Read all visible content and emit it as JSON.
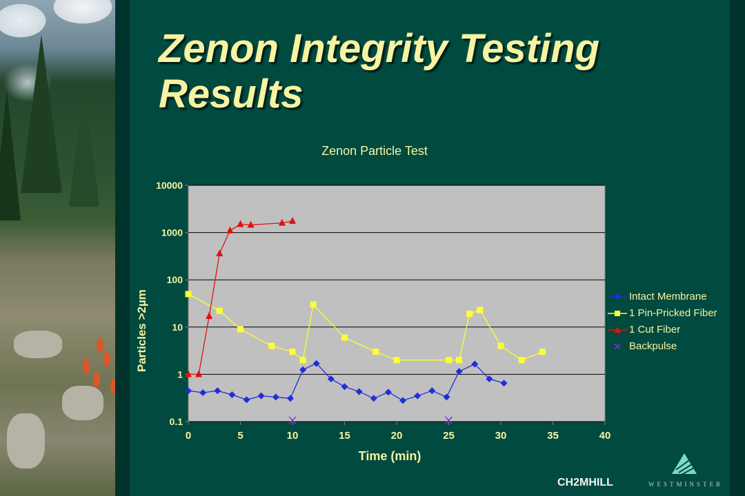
{
  "slide": {
    "title_line1": "Zenon Integrity Testing",
    "title_line2": "Results"
  },
  "logos": {
    "company": "CH2MHILL",
    "partner": "WESTMINSTER"
  },
  "colors": {
    "background": "#004a3f",
    "title_text": "#f7f3a2",
    "plot_bg": "#c0c0c0",
    "intact": "#1f2fd6",
    "pin_pricked": "#ffff33",
    "cut_fiber": "#e01010",
    "backpulse": "#8a2be2"
  },
  "chart_data": {
    "type": "scatter",
    "title": "Zenon Particle Test",
    "xlabel": "Time (min)",
    "ylabel": "Particles >2µm",
    "xlim": [
      0,
      40
    ],
    "ylim": [
      0.1,
      10000
    ],
    "yscale": "log",
    "xticks": [
      "0",
      "5",
      "10",
      "15",
      "20",
      "25",
      "30",
      "35",
      "40"
    ],
    "yticks": [
      "0.1",
      "1",
      "10",
      "100",
      "1000",
      "10000"
    ],
    "grid": "horizontal major",
    "legend_position": "right",
    "series": [
      {
        "name": "Intact Membrane",
        "marker": "diamond",
        "color": "#1f2fd6",
        "x": [
          0,
          1.4,
          2.8,
          4.2,
          5.6,
          7,
          8.4,
          9.8,
          11,
          12.3,
          13.7,
          15,
          16.4,
          17.8,
          19.2,
          20.6,
          22,
          23.4,
          24.8,
          26,
          27.5,
          28.9,
          30.3
        ],
        "y": [
          0.45,
          0.41,
          0.45,
          0.37,
          0.29,
          0.35,
          0.33,
          0.31,
          1.25,
          1.7,
          0.8,
          0.55,
          0.43,
          0.31,
          0.42,
          0.28,
          0.35,
          0.45,
          0.33,
          1.15,
          1.65,
          0.8,
          0.65
        ]
      },
      {
        "name": "1 Pin-Pricked Fiber",
        "marker": "square",
        "color": "#ffff33",
        "x": [
          0,
          3,
          5,
          8,
          10,
          11,
          12,
          15,
          18,
          20,
          25,
          26,
          27,
          28,
          30,
          32,
          34
        ],
        "y": [
          50,
          22,
          9,
          4,
          3,
          2,
          30,
          6,
          3,
          2,
          2,
          2,
          19,
          23,
          4,
          2,
          3
        ]
      },
      {
        "name": "1 Cut Fiber",
        "marker": "triangle",
        "color": "#e01010",
        "x": [
          0,
          1,
          2,
          3,
          4,
          5,
          6,
          9,
          10
        ],
        "y": [
          1,
          1,
          17,
          360,
          1100,
          1500,
          1450,
          1600,
          1750
        ]
      },
      {
        "name": "Backpulse",
        "marker": "x",
        "color": "#8a2be2",
        "x": [
          10,
          25
        ],
        "y": [
          0.1,
          0.1
        ]
      }
    ]
  }
}
